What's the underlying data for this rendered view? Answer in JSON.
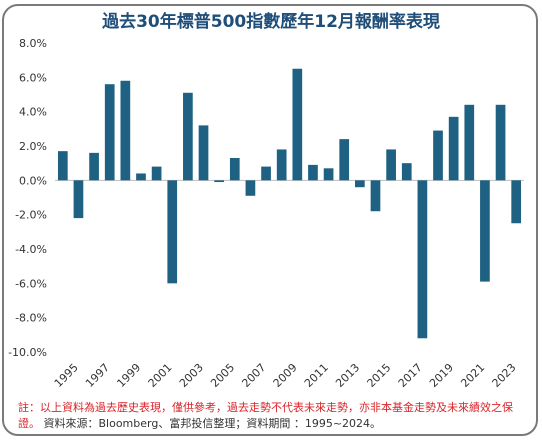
{
  "title": "過去30年標普500指數歷年12月報酬率表現",
  "chart_data": {
    "type": "bar",
    "title": "過去30年標普500指數歷年12月報酬率表現",
    "xlabel": "",
    "ylabel": "",
    "ylim": [
      -10,
      8
    ],
    "yticks": [
      8,
      6,
      4,
      2,
      0,
      -2,
      -4,
      -6,
      -8,
      -10
    ],
    "ytick_labels": [
      "8.0%",
      "6.0%",
      "4.0%",
      "2.0%",
      "0.0%",
      "-2.0%",
      "-4.0%",
      "-6.0%",
      "-8.0%",
      "-10.0%"
    ],
    "categories": [
      "1995",
      "1996",
      "1997",
      "1998",
      "1999",
      "2000",
      "2001",
      "2002",
      "2003",
      "2004",
      "2005",
      "2006",
      "2007",
      "2008",
      "2009",
      "2010",
      "2011",
      "2012",
      "2013",
      "2014",
      "2015",
      "2016",
      "2017",
      "2018",
      "2019",
      "2020",
      "2021",
      "2022",
      "2023",
      "2024"
    ],
    "x_tick_labels": [
      "1995",
      "1997",
      "1999",
      "2001",
      "2003",
      "2005",
      "2007",
      "2009",
      "2011",
      "2013",
      "2015",
      "2017",
      "2019",
      "2021",
      "2023"
    ],
    "values": [
      1.7,
      -2.2,
      1.6,
      5.6,
      5.8,
      0.4,
      0.8,
      -6.0,
      5.1,
      3.2,
      -0.1,
      1.3,
      -0.9,
      0.8,
      1.8,
      6.5,
      0.9,
      0.7,
      2.4,
      -0.4,
      -1.8,
      1.8,
      1.0,
      -9.2,
      2.9,
      3.7,
      4.4,
      -5.9,
      4.4,
      -2.5
    ],
    "bar_color": "#1e6182",
    "grid": false,
    "legend": "none"
  },
  "footnote": {
    "disclaimer": "註：以上資料為過去歷史表現，僅供參考，過去走勢不代表未來走勢，亦非本基金走勢及未來績效之保證。",
    "source": "資料來源：Bloomberg、富邦投信整理；資料期間 ：1995~2024。"
  },
  "colors": {
    "title": "#1f4e79",
    "note": "#d9252a",
    "axis": "#bfbfbf",
    "frame": "#7a7a7a"
  }
}
